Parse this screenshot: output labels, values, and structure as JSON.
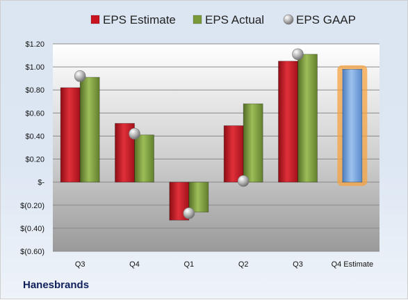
{
  "company": "Hanesbrands",
  "colors": {
    "estimate": "#c8141e",
    "actual": "#7a9a3a",
    "gaap": "#a8a8a8",
    "q4_estimate": "#6f9fd8",
    "highlight": "#f4a340"
  },
  "chart_data": {
    "type": "bar",
    "categories": [
      "Q3",
      "Q4",
      "Q1",
      "Q2",
      "Q3",
      "Q4 Estimate"
    ],
    "series": [
      {
        "name": "EPS Estimate",
        "values": [
          0.82,
          0.51,
          -0.33,
          0.49,
          1.05,
          null
        ]
      },
      {
        "name": "EPS Actual",
        "values": [
          0.91,
          0.41,
          -0.26,
          0.68,
          1.11,
          0.98
        ]
      },
      {
        "name": "EPS GAAP",
        "values": [
          0.92,
          0.42,
          -0.27,
          0.01,
          1.11,
          null
        ]
      }
    ],
    "ylim": [
      -0.6,
      1.2
    ],
    "yticks": [
      1.2,
      1.0,
      0.8,
      0.6,
      0.4,
      0.2,
      0,
      -0.2,
      -0.4,
      -0.6
    ],
    "ytick_labels": [
      "$1.20",
      "$1.00",
      "$0.80",
      "$0.60",
      "$0.40",
      "$0.20",
      "$-",
      "$(0.20)",
      "$(0.40)",
      "$(0.60)"
    ],
    "legend_position": "top-center",
    "grid": true,
    "highlighted_category": "Q4 Estimate"
  }
}
